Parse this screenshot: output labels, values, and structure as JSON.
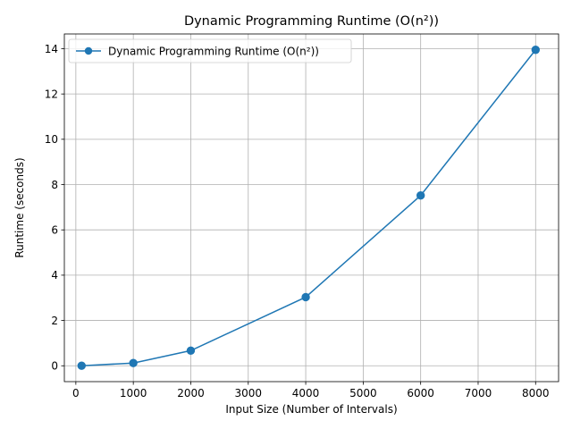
{
  "chart_data": {
    "type": "line",
    "title": "Dynamic Programming Runtime (O(n²))",
    "xlabel": "Input Size (Number of Intervals)",
    "ylabel": "Runtime (seconds)",
    "xlim": [
      -200,
      8400
    ],
    "ylim": [
      -0.7,
      14.65
    ],
    "xticks": [
      0,
      1000,
      2000,
      3000,
      4000,
      5000,
      6000,
      7000,
      8000
    ],
    "yticks": [
      0,
      2,
      4,
      6,
      8,
      10,
      12,
      14
    ],
    "grid": true,
    "legend_position": "top-left",
    "series": [
      {
        "name": "Dynamic Programming Runtime (O(n²))",
        "color": "#1f77b4",
        "marker": "circle",
        "x": [
          100,
          1000,
          2000,
          4000,
          6000,
          8000
        ],
        "y": [
          0.002,
          0.12,
          0.67,
          3.03,
          7.52,
          13.95
        ]
      }
    ]
  }
}
